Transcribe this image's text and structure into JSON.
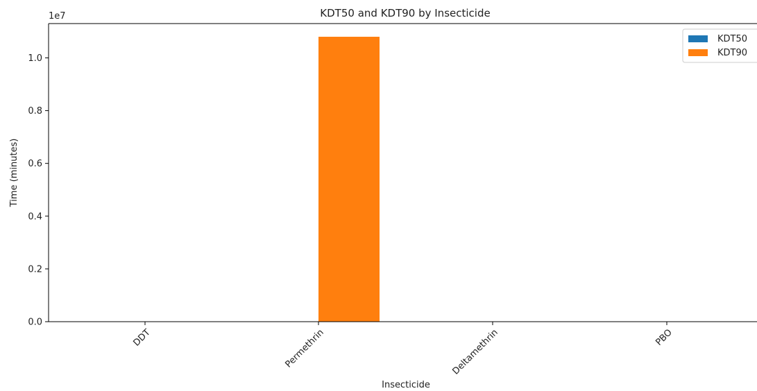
{
  "chart_data": {
    "type": "bar",
    "title": "KDT50 and KDT90 by Insecticide",
    "xlabel": "Insecticide",
    "ylabel": "Time (minutes)",
    "y_offset_label": "1e7",
    "categories": [
      "DDT",
      "Permethrin",
      "Deltamethrin",
      "PBO"
    ],
    "series": [
      {
        "name": "KDT50",
        "color": "#1f77b4",
        "values": [
          0,
          0,
          0,
          0
        ]
      },
      {
        "name": "KDT90",
        "color": "#ff7f0e",
        "values": [
          0,
          10800000,
          0,
          0
        ]
      }
    ],
    "ylim": [
      0,
      11300000
    ],
    "yticks": [
      0,
      2000000,
      4000000,
      6000000,
      8000000,
      10000000
    ],
    "ytick_labels": [
      "0.0",
      "0.2",
      "0.4",
      "0.6",
      "0.8",
      "1.0"
    ],
    "grid": false,
    "legend_position": "top-right"
  }
}
